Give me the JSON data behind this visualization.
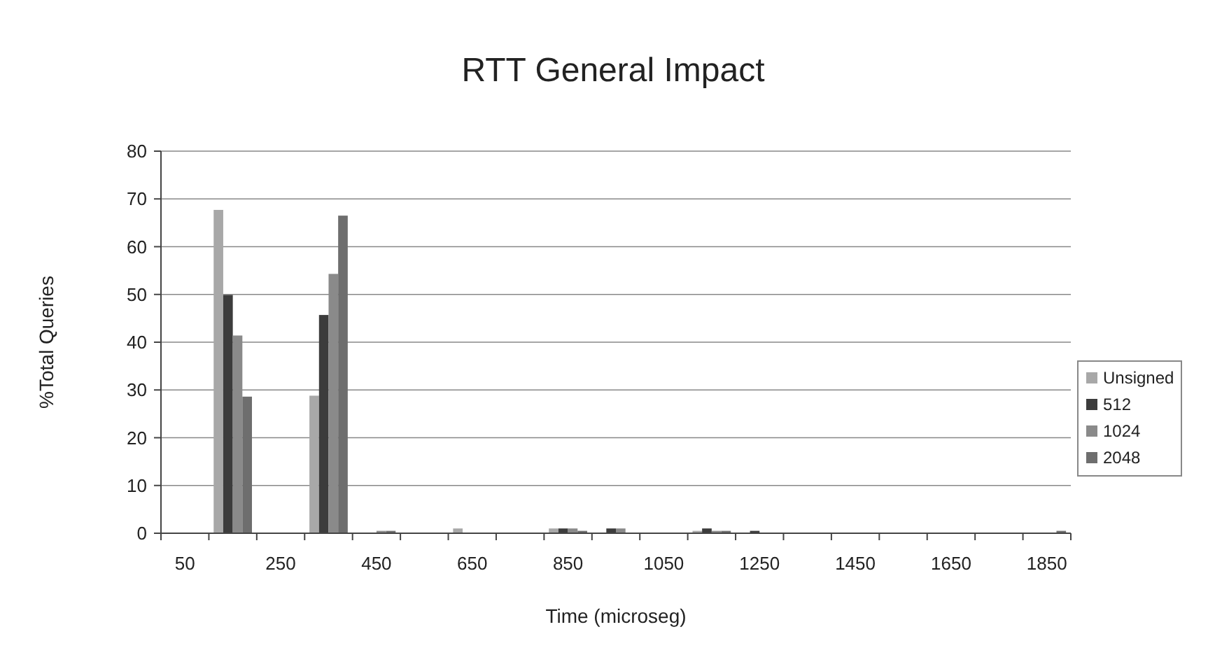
{
  "chart_data": {
    "type": "bar",
    "title": "RTT General Impact",
    "xlabel": "Time (microseg)",
    "ylabel": "%Total Queries",
    "categories": [
      "50",
      null,
      "250",
      null,
      "450",
      null,
      "650",
      null,
      "850",
      null,
      "1050",
      null,
      "1250",
      null,
      "1450",
      null,
      "1650",
      null,
      "1850"
    ],
    "series": [
      {
        "name": "Unsigned",
        "color": "#a8a8a8",
        "values": [
          0,
          67.7,
          0,
          28.8,
          null,
          0,
          1,
          0,
          1,
          null,
          0,
          0.5,
          0,
          0,
          0,
          0,
          0,
          0,
          0
        ]
      },
      {
        "name": "512",
        "color": "#3c3c3c",
        "values": [
          0,
          49.9,
          0,
          45.7,
          null,
          0,
          0,
          0,
          1,
          1,
          0,
          1,
          0.5,
          0,
          0,
          0,
          0,
          0,
          0
        ]
      },
      {
        "name": "1024",
        "color": "#8a8a8a",
        "values": [
          0,
          41.4,
          0,
          54.3,
          0.5,
          0,
          0,
          0,
          1,
          1,
          0,
          0.5,
          0,
          0,
          0,
          0,
          0,
          0,
          0
        ]
      },
      {
        "name": "2048",
        "color": "#6e6e6e",
        "values": [
          0,
          28.6,
          0,
          66.5,
          0.5,
          0,
          0,
          0,
          0.5,
          null,
          0,
          0.5,
          0,
          0,
          0,
          0,
          0,
          0,
          0.5
        ]
      }
    ],
    "ylim": [
      0,
      80
    ],
    "yticks": [
      0,
      10,
      20,
      30,
      40,
      50,
      60,
      70,
      80
    ],
    "grid": "y",
    "legend": "right"
  }
}
